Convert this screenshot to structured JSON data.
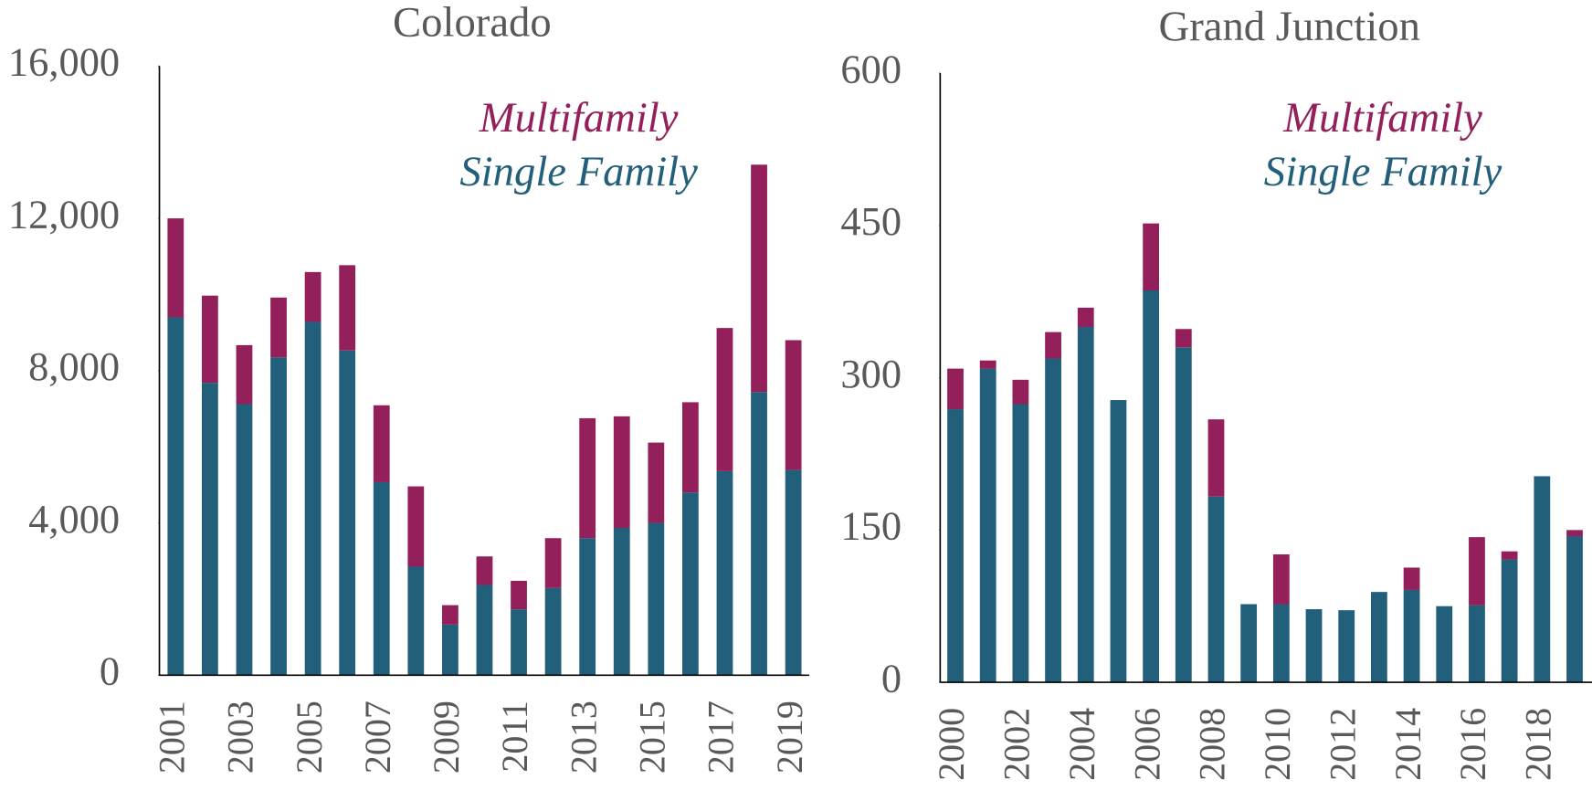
{
  "chart_data": [
    {
      "type": "bar",
      "stacked": true,
      "title": "Colorado",
      "categories": [
        "2001",
        null,
        "2003",
        null,
        "2005",
        null,
        "2007",
        null,
        "2009",
        null,
        "2011",
        null,
        "2013",
        null,
        "2015",
        null,
        "2017",
        null,
        "2019"
      ],
      "series": [
        {
          "name": "Single Family",
          "color": "#215f7a",
          "values": [
            9400,
            7680,
            7120,
            8350,
            9280,
            8530,
            5070,
            2850,
            1330,
            2370,
            1730,
            2290,
            3600,
            3870,
            4000,
            4800,
            5360,
            7440,
            5390
          ]
        },
        {
          "name": "Multifamily",
          "color": "#93205a",
          "values": [
            2600,
            2290,
            1550,
            1570,
            1310,
            2240,
            2020,
            2110,
            510,
            750,
            750,
            1310,
            3150,
            2930,
            2110,
            2370,
            3760,
            5970,
            3410
          ]
        }
      ],
      "ylim": [
        0,
        16000
      ],
      "yticks": [
        0,
        {
          "value": 4000,
          "label": "4,000"
        },
        {
          "value": 8000,
          "label": "8,000"
        },
        {
          "value": 12000,
          "label": "12,000"
        },
        {
          "value": 16000,
          "label": "16,000"
        }
      ]
    },
    {
      "type": "bar",
      "stacked": true,
      "title": "Grand Junction",
      "categories": [
        "2000",
        null,
        "2002",
        null,
        "2004",
        null,
        "2006",
        null,
        "2008",
        null,
        "2010",
        null,
        "2012",
        null,
        "2014",
        null,
        "2016",
        null,
        "2018",
        null
      ],
      "series": [
        {
          "name": "Single Family",
          "color": "#215f7a",
          "values": [
            269,
            309,
            274,
            319,
            350,
            278,
            386,
            330,
            183,
            77,
            77,
            72,
            71,
            89,
            91,
            75,
            76,
            121,
            203,
            144
          ]
        },
        {
          "name": "Multifamily",
          "color": "#93205a",
          "values": [
            40,
            8,
            24,
            26,
            19,
            0,
            66,
            18,
            76,
            0,
            49,
            0,
            0,
            0,
            22,
            0,
            67,
            8,
            0,
            6
          ]
        }
      ],
      "ylim": [
        0,
        600
      ],
      "yticks": [
        0,
        150,
        300,
        450,
        600
      ]
    }
  ]
}
